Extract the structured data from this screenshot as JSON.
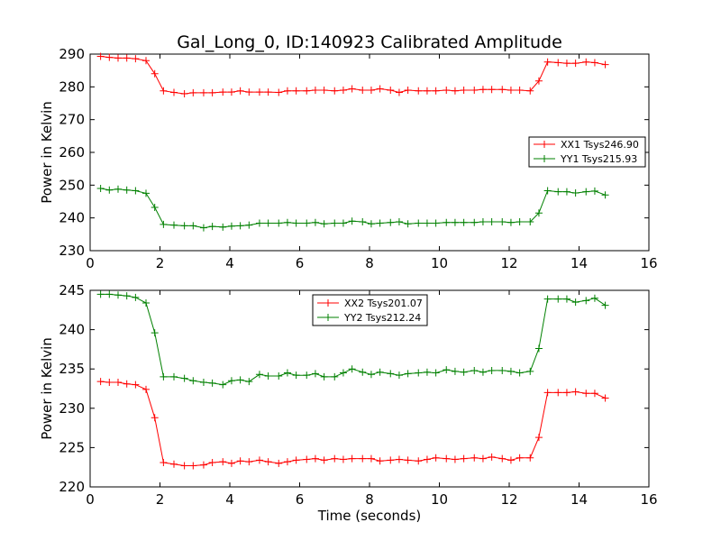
{
  "chart_data": [
    {
      "type": "line",
      "title": "Gal_Long_0, ID:140923 Calibrated Amplitude",
      "xlabel": "",
      "ylabel": "Power in Kelvin",
      "xlim": [
        0,
        16
      ],
      "ylim": [
        230,
        290
      ],
      "xticks": [
        0,
        2,
        4,
        6,
        8,
        10,
        12,
        14,
        16
      ],
      "yticks": [
        230,
        240,
        250,
        260,
        270,
        280,
        290
      ],
      "legend_position": "center-right",
      "x": [
        0.3,
        0.55,
        0.8,
        1.05,
        1.3,
        1.6,
        1.85,
        2.1,
        2.4,
        2.7,
        2.95,
        3.25,
        3.5,
        3.8,
        4.05,
        4.3,
        4.55,
        4.85,
        5.1,
        5.4,
        5.65,
        5.9,
        6.2,
        6.45,
        6.7,
        7.0,
        7.25,
        7.5,
        7.8,
        8.05,
        8.3,
        8.6,
        8.85,
        9.1,
        9.4,
        9.65,
        9.9,
        10.2,
        10.45,
        10.7,
        11.0,
        11.25,
        11.5,
        11.8,
        12.05,
        12.3,
        12.6,
        12.85,
        13.1,
        13.4,
        13.65,
        13.9,
        14.2,
        14.45,
        14.75
      ],
      "series": [
        {
          "name": "XX1 Tsys246.90",
          "color": "#ff0000",
          "values": [
            289.3,
            289.0,
            288.8,
            288.8,
            288.6,
            288.0,
            284.0,
            278.8,
            278.3,
            277.9,
            278.2,
            278.2,
            278.2,
            278.4,
            278.4,
            278.8,
            278.4,
            278.4,
            278.4,
            278.3,
            278.8,
            278.8,
            278.8,
            279.0,
            279.0,
            278.8,
            279.0,
            279.4,
            279.0,
            279.0,
            279.4,
            279.0,
            278.3,
            279.0,
            278.8,
            278.8,
            278.8,
            279.0,
            278.8,
            279.0,
            279.0,
            279.2,
            279.2,
            279.2,
            279.0,
            279.0,
            278.8,
            281.8,
            287.6,
            287.4,
            287.2,
            287.2,
            287.6,
            287.4,
            286.8
          ]
        },
        {
          "name": "YY1 Tsys215.93",
          "color": "#008000",
          "values": [
            249.0,
            248.5,
            248.8,
            248.5,
            248.3,
            247.5,
            243.2,
            238.0,
            237.8,
            237.6,
            237.6,
            237.0,
            237.4,
            237.2,
            237.5,
            237.6,
            237.8,
            238.4,
            238.4,
            238.4,
            238.6,
            238.4,
            238.4,
            238.6,
            238.2,
            238.4,
            238.4,
            239.0,
            238.8,
            238.2,
            238.4,
            238.6,
            238.8,
            238.2,
            238.4,
            238.4,
            238.4,
            238.6,
            238.6,
            238.6,
            238.6,
            238.8,
            238.8,
            238.8,
            238.6,
            238.8,
            238.8,
            241.5,
            248.3,
            248.0,
            248.0,
            247.6,
            248.0,
            248.2,
            247.0
          ]
        }
      ]
    },
    {
      "type": "line",
      "title": "",
      "xlabel": "Time (seconds)",
      "ylabel": "Power in Kelvin",
      "xlim": [
        0,
        16
      ],
      "ylim": [
        220,
        245
      ],
      "xticks": [
        0,
        2,
        4,
        6,
        8,
        10,
        12,
        14,
        16
      ],
      "yticks": [
        220,
        225,
        230,
        235,
        240,
        245
      ],
      "legend_position": "top-center",
      "x": [
        0.3,
        0.55,
        0.8,
        1.05,
        1.3,
        1.6,
        1.85,
        2.1,
        2.4,
        2.7,
        2.95,
        3.25,
        3.5,
        3.8,
        4.05,
        4.3,
        4.55,
        4.85,
        5.1,
        5.4,
        5.65,
        5.9,
        6.2,
        6.45,
        6.7,
        7.0,
        7.25,
        7.5,
        7.8,
        8.05,
        8.3,
        8.6,
        8.85,
        9.1,
        9.4,
        9.65,
        9.9,
        10.2,
        10.45,
        10.7,
        11.0,
        11.25,
        11.5,
        11.8,
        12.05,
        12.3,
        12.6,
        12.85,
        13.1,
        13.4,
        13.65,
        13.9,
        14.2,
        14.45,
        14.75
      ],
      "series": [
        {
          "name": "XX2 Tsys201.07",
          "color": "#ff0000",
          "values": [
            233.4,
            233.3,
            233.3,
            233.1,
            233.0,
            232.4,
            228.8,
            223.1,
            222.9,
            222.7,
            222.7,
            222.8,
            223.1,
            223.2,
            223.0,
            223.3,
            223.2,
            223.4,
            223.2,
            223.0,
            223.2,
            223.4,
            223.5,
            223.6,
            223.4,
            223.6,
            223.5,
            223.6,
            223.6,
            223.6,
            223.3,
            223.4,
            223.5,
            223.4,
            223.3,
            223.5,
            223.7,
            223.6,
            223.5,
            223.6,
            223.7,
            223.6,
            223.8,
            223.6,
            223.4,
            223.7,
            223.7,
            226.3,
            232.0,
            232.0,
            232.0,
            232.1,
            231.9,
            231.9,
            231.3
          ]
        },
        {
          "name": "YY2 Tsys212.24",
          "color": "#008000",
          "values": [
            244.5,
            244.5,
            244.4,
            244.3,
            244.1,
            243.4,
            239.6,
            234.0,
            234.0,
            233.8,
            233.5,
            233.3,
            233.2,
            233.0,
            233.5,
            233.6,
            233.4,
            234.3,
            234.1,
            234.1,
            234.5,
            234.2,
            234.2,
            234.4,
            234.0,
            234.0,
            234.5,
            235.0,
            234.6,
            234.3,
            234.6,
            234.4,
            234.2,
            234.4,
            234.5,
            234.6,
            234.5,
            234.9,
            234.7,
            234.6,
            234.8,
            234.6,
            234.8,
            234.8,
            234.7,
            234.5,
            234.7,
            237.6,
            243.9,
            243.9,
            243.9,
            243.5,
            243.7,
            244.0,
            243.1
          ]
        }
      ]
    }
  ]
}
